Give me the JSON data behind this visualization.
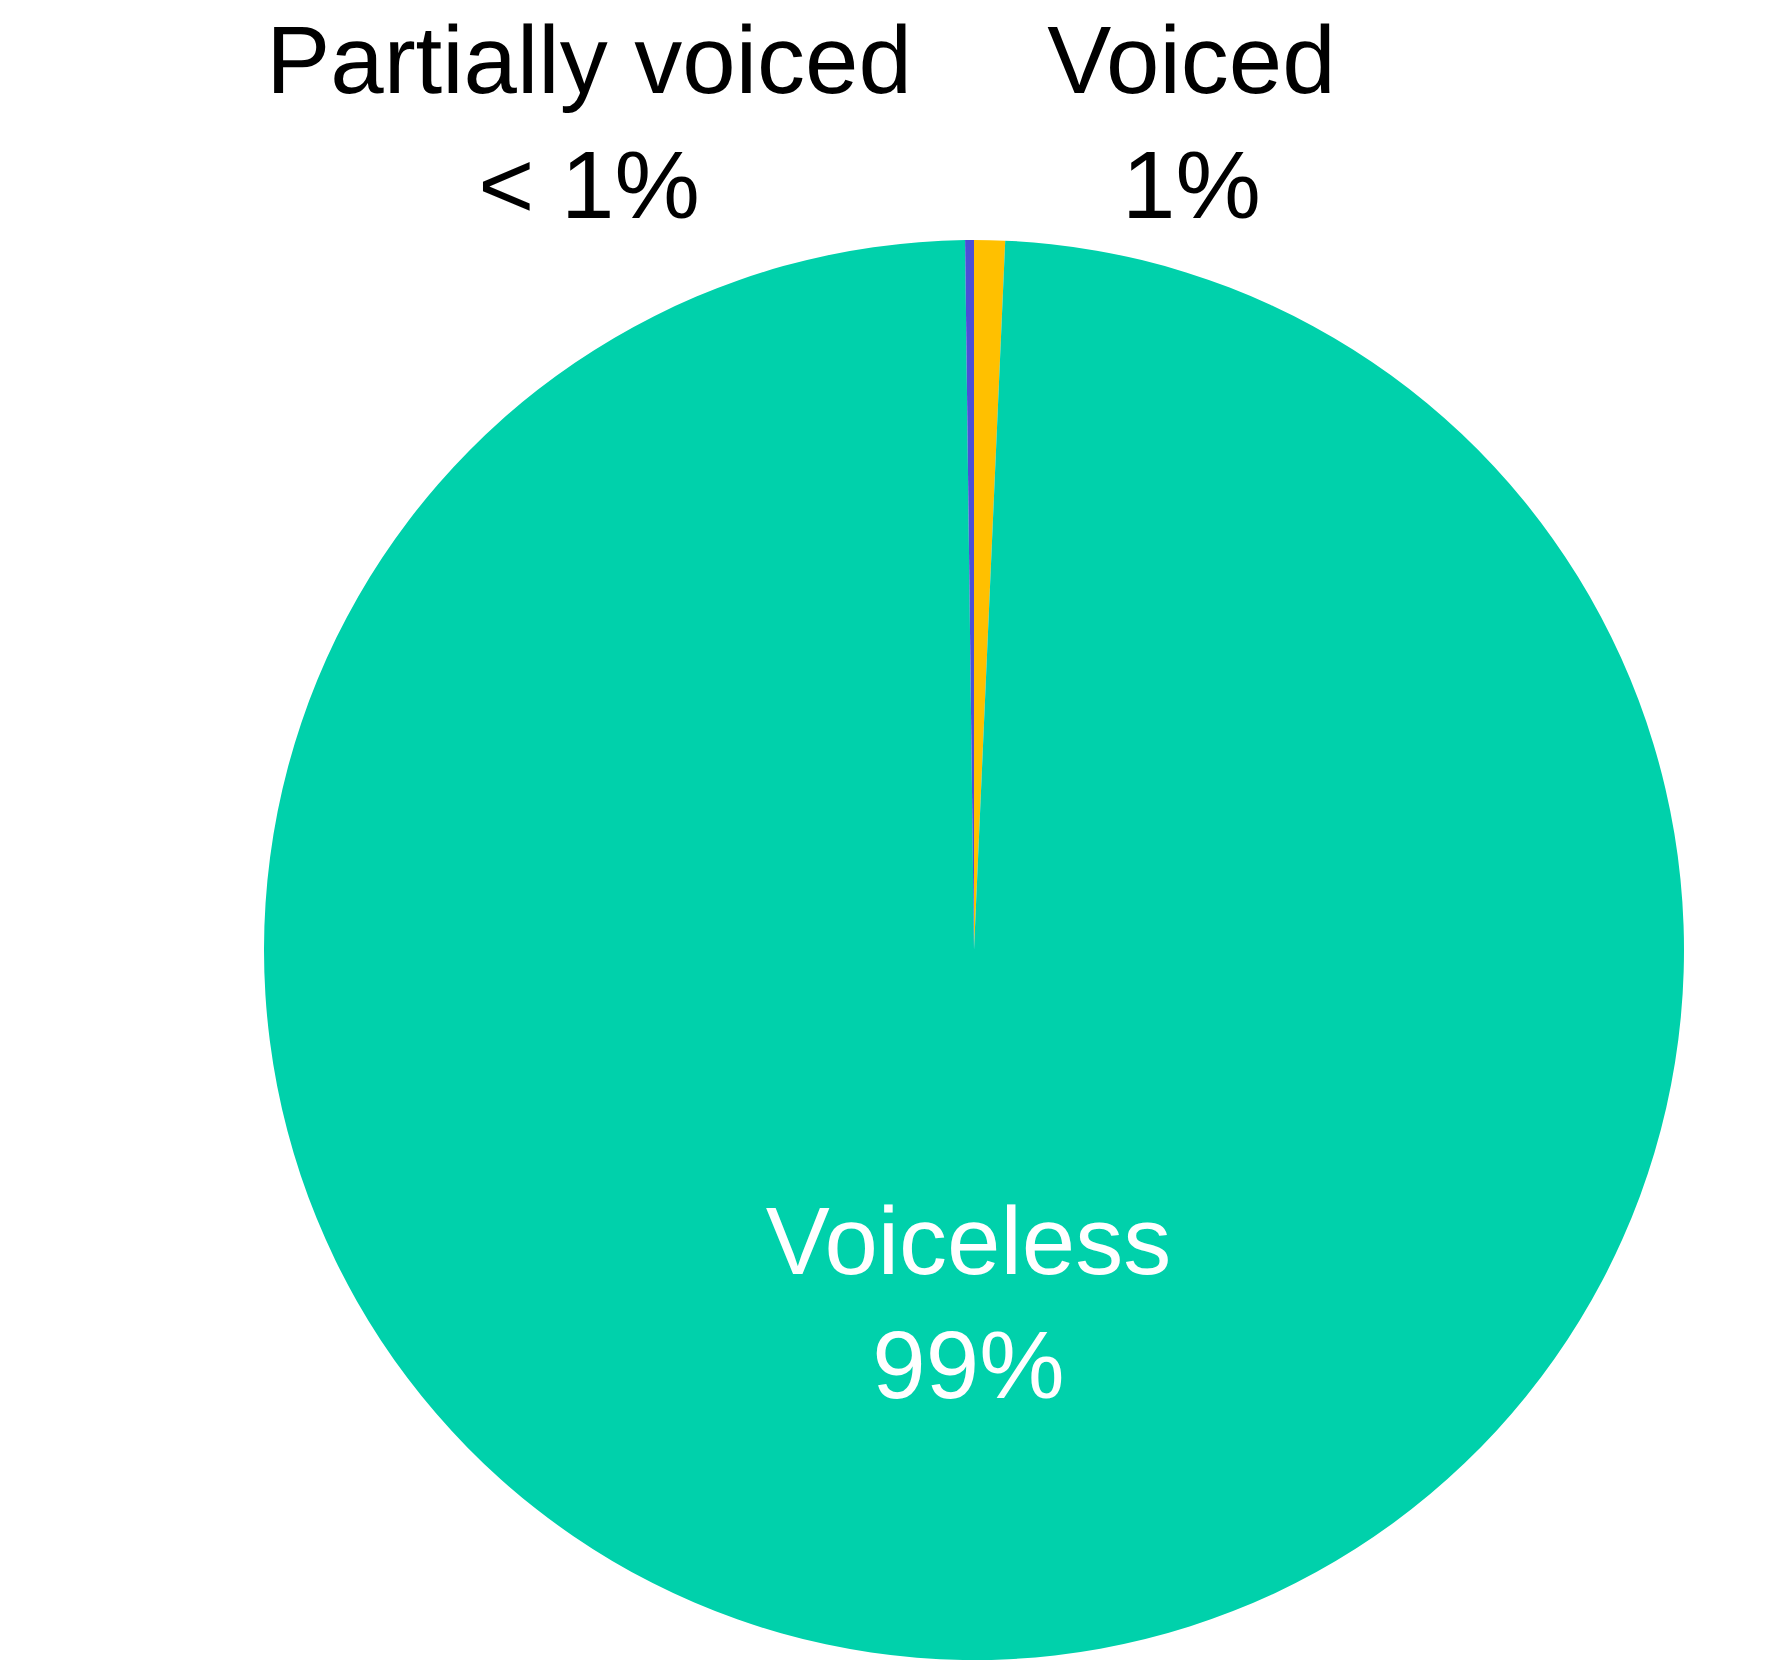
{
  "chart_data": {
    "type": "pie",
    "categories": [
      "Voiced",
      "Voiceless",
      "Partially voiced"
    ],
    "values": [
      0.7,
      99.1,
      0.2
    ],
    "value_labels": [
      "1%",
      "99%",
      "< 1%"
    ],
    "colors": [
      "#ffc000",
      "#00d1ab",
      "#4b4fd6"
    ],
    "legend": false
  }
}
